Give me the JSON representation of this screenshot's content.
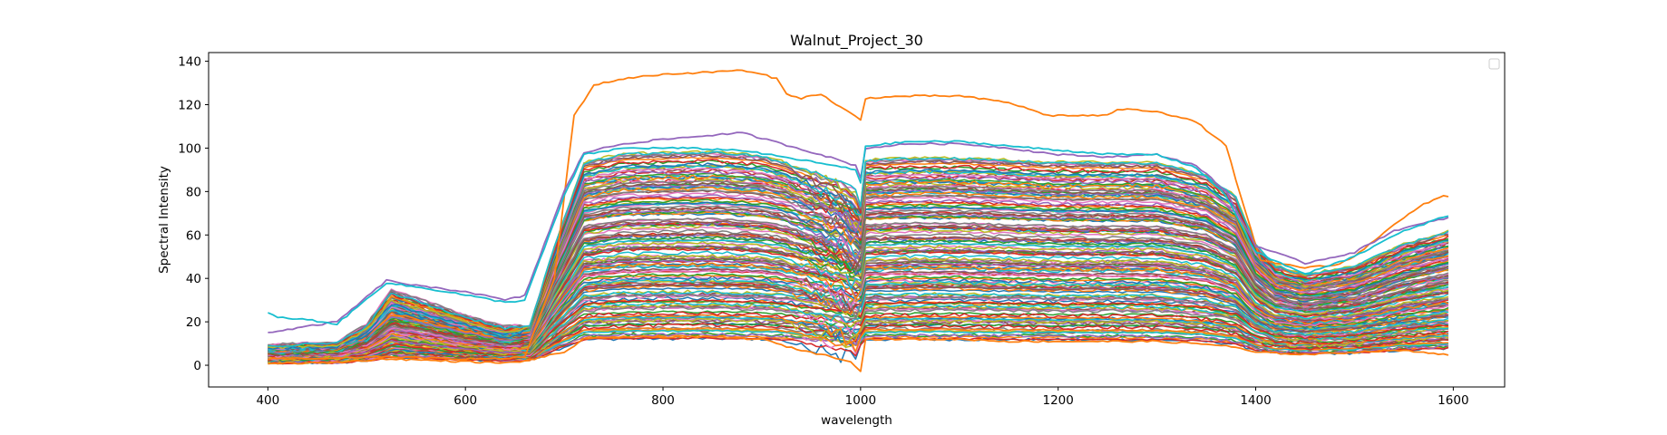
{
  "chart_data": {
    "type": "line",
    "title": "Walnut_Project_30",
    "xlabel": "wavelength",
    "ylabel": "Spectral Intensity",
    "xlim": [
      340,
      1652
    ],
    "ylim": [
      -10,
      144
    ],
    "xticks": [
      400,
      600,
      800,
      1000,
      1200,
      1400,
      1600
    ],
    "yticks": [
      0,
      20,
      40,
      60,
      80,
      100,
      120,
      140
    ],
    "grid": false,
    "legend": {
      "placement": "upper right",
      "entries": []
    },
    "wavelength_range": [
      400,
      1595
    ],
    "series_count": 150,
    "color_cycle": [
      "#1f77b4",
      "#ff7f0e",
      "#2ca02c",
      "#d62728",
      "#9467bd",
      "#8c564b",
      "#e377c2",
      "#7f7f7f",
      "#bcbd22",
      "#17becf"
    ],
    "series": [
      {
        "description": "highest spectrum (outlier)",
        "color": "#ff7f0e",
        "points": [
          [
            400,
            3
          ],
          [
            460,
            3
          ],
          [
            520,
            4
          ],
          [
            580,
            3
          ],
          [
            640,
            3
          ],
          [
            660,
            4
          ],
          [
            690,
            40
          ],
          [
            710,
            115
          ],
          [
            730,
            129
          ],
          [
            760,
            132
          ],
          [
            800,
            134
          ],
          [
            850,
            135
          ],
          [
            875,
            136
          ],
          [
            900,
            134
          ],
          [
            915,
            132
          ],
          [
            925,
            125
          ],
          [
            940,
            123
          ],
          [
            960,
            125
          ],
          [
            975,
            120
          ],
          [
            990,
            116
          ],
          [
            1000,
            113
          ],
          [
            1005,
            123
          ],
          [
            1050,
            124
          ],
          [
            1100,
            124
          ],
          [
            1150,
            121
          ],
          [
            1190,
            115
          ],
          [
            1230,
            115
          ],
          [
            1250,
            115
          ],
          [
            1260,
            118
          ],
          [
            1300,
            117
          ],
          [
            1340,
            112
          ],
          [
            1370,
            101
          ],
          [
            1390,
            70
          ],
          [
            1405,
            48
          ],
          [
            1450,
            45
          ],
          [
            1480,
            46
          ],
          [
            1500,
            50
          ],
          [
            1540,
            65
          ],
          [
            1570,
            74
          ],
          [
            1590,
            78
          ],
          [
            1595,
            78
          ]
        ]
      },
      {
        "description": "upper envelope",
        "color": "#9467bd",
        "points": [
          [
            400,
            15
          ],
          [
            470,
            20
          ],
          [
            520,
            39
          ],
          [
            560,
            36
          ],
          [
            600,
            34
          ],
          [
            640,
            30
          ],
          [
            660,
            32
          ],
          [
            700,
            80
          ],
          [
            720,
            98
          ],
          [
            760,
            102
          ],
          [
            800,
            104
          ],
          [
            850,
            106
          ],
          [
            880,
            107
          ],
          [
            920,
            102
          ],
          [
            960,
            97
          ],
          [
            995,
            92
          ],
          [
            1000,
            86
          ],
          [
            1005,
            100
          ],
          [
            1050,
            102
          ],
          [
            1100,
            102
          ],
          [
            1150,
            100
          ],
          [
            1200,
            97
          ],
          [
            1250,
            96
          ],
          [
            1300,
            97
          ],
          [
            1340,
            92
          ],
          [
            1370,
            80
          ],
          [
            1400,
            55
          ],
          [
            1450,
            47
          ],
          [
            1500,
            52
          ],
          [
            1540,
            62
          ],
          [
            1595,
            68
          ]
        ]
      },
      {
        "description": "cyan high spectrum",
        "color": "#17becf",
        "points": [
          [
            400,
            24
          ],
          [
            410,
            22
          ],
          [
            440,
            21
          ],
          [
            470,
            19
          ],
          [
            520,
            38
          ],
          [
            580,
            34
          ],
          [
            640,
            29
          ],
          [
            660,
            30
          ],
          [
            700,
            78
          ],
          [
            720,
            97
          ],
          [
            760,
            100
          ],
          [
            820,
            100
          ],
          [
            880,
            99
          ],
          [
            920,
            96
          ],
          [
            960,
            93
          ],
          [
            995,
            90
          ],
          [
            1000,
            84
          ],
          [
            1005,
            101
          ],
          [
            1050,
            103
          ],
          [
            1100,
            103
          ],
          [
            1150,
            101
          ],
          [
            1200,
            99
          ],
          [
            1260,
            97
          ],
          [
            1300,
            97
          ],
          [
            1340,
            91
          ],
          [
            1370,
            78
          ],
          [
            1400,
            52
          ],
          [
            1450,
            42
          ],
          [
            1500,
            50
          ],
          [
            1540,
            60
          ],
          [
            1595,
            69
          ]
        ]
      },
      {
        "description": "lowest spectrum",
        "color": "#ff7f0e",
        "points": [
          [
            400,
            1
          ],
          [
            460,
            1
          ],
          [
            520,
            3
          ],
          [
            580,
            2
          ],
          [
            640,
            1
          ],
          [
            660,
            2
          ],
          [
            700,
            6
          ],
          [
            720,
            12
          ],
          [
            760,
            13
          ],
          [
            800,
            13
          ],
          [
            850,
            13
          ],
          [
            900,
            12
          ],
          [
            930,
            8
          ],
          [
            960,
            5
          ],
          [
            990,
            2
          ],
          [
            1000,
            -3
          ],
          [
            1005,
            12
          ],
          [
            1050,
            12
          ],
          [
            1100,
            12
          ],
          [
            1150,
            11
          ],
          [
            1200,
            11
          ],
          [
            1250,
            11
          ],
          [
            1300,
            11
          ],
          [
            1340,
            10
          ],
          [
            1370,
            9
          ],
          [
            1400,
            6
          ],
          [
            1450,
            5
          ],
          [
            1500,
            6
          ],
          [
            1540,
            7
          ],
          [
            1595,
            5
          ]
        ]
      }
    ]
  }
}
